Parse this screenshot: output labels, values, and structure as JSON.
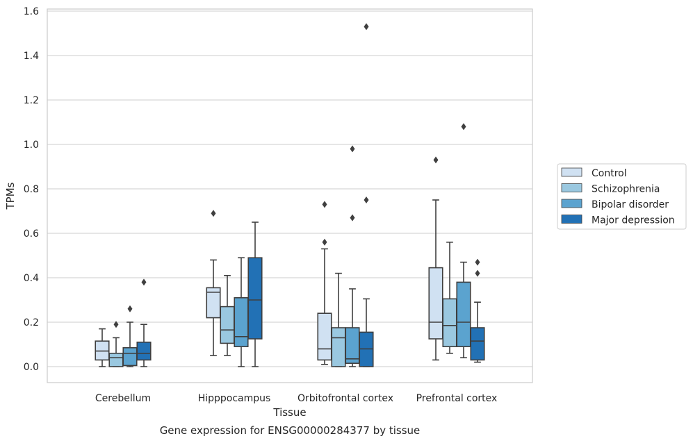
{
  "chart_data": {
    "type": "box",
    "xlabel": "Tissue",
    "ylabel": "TPMs",
    "caption": "Gene expression for ENSG00000284377 by tissue",
    "ylim": [
      -0.07,
      1.61
    ],
    "yticks": [
      "0.0",
      "0.2",
      "0.4",
      "0.6",
      "0.8",
      "1.0",
      "1.2",
      "1.4",
      "1.6"
    ],
    "grid": true,
    "legend_position": "right",
    "categories": [
      "Cerebellum",
      "Hipppocampus",
      "Orbitofrontal cortex",
      "Prefrontal cortex"
    ],
    "series": [
      {
        "name": "Control",
        "color": "#d0e1f2",
        "boxes": [
          {
            "whislo": 0.0,
            "q1": 0.03,
            "med": 0.07,
            "q3": 0.115,
            "whishi": 0.17,
            "fliers": []
          },
          {
            "whislo": 0.05,
            "q1": 0.22,
            "med": 0.335,
            "q3": 0.355,
            "whishi": 0.48,
            "fliers": [
              0.69
            ]
          },
          {
            "whislo": 0.01,
            "q1": 0.03,
            "med": 0.08,
            "q3": 0.24,
            "whishi": 0.53,
            "fliers": [
              0.56,
              0.73
            ]
          },
          {
            "whislo": 0.03,
            "q1": 0.125,
            "med": 0.2,
            "q3": 0.445,
            "whishi": 0.75,
            "fliers": [
              0.93
            ]
          }
        ]
      },
      {
        "name": "Schizophrenia",
        "color": "#9ac8e0",
        "boxes": [
          {
            "whislo": 0.0,
            "q1": 0.0,
            "med": 0.04,
            "q3": 0.06,
            "whishi": 0.13,
            "fliers": [
              0.19
            ]
          },
          {
            "whislo": 0.05,
            "q1": 0.105,
            "med": 0.165,
            "q3": 0.27,
            "whishi": 0.41,
            "fliers": []
          },
          {
            "whislo": 0.0,
            "q1": 0.0,
            "med": 0.13,
            "q3": 0.175,
            "whishi": 0.42,
            "fliers": []
          },
          {
            "whislo": 0.06,
            "q1": 0.09,
            "med": 0.185,
            "q3": 0.305,
            "whishi": 0.56,
            "fliers": []
          }
        ]
      },
      {
        "name": "Bipolar disorder",
        "color": "#5ba3cf",
        "boxes": [
          {
            "whislo": 0.0,
            "q1": 0.005,
            "med": 0.06,
            "q3": 0.085,
            "whishi": 0.2,
            "fliers": [
              0.26
            ]
          },
          {
            "whislo": 0.0,
            "q1": 0.09,
            "med": 0.135,
            "q3": 0.31,
            "whishi": 0.49,
            "fliers": []
          },
          {
            "whislo": 0.0,
            "q1": 0.015,
            "med": 0.035,
            "q3": 0.175,
            "whishi": 0.35,
            "fliers": [
              0.67,
              0.98
            ]
          },
          {
            "whislo": 0.04,
            "q1": 0.09,
            "med": 0.2,
            "q3": 0.38,
            "whishi": 0.47,
            "fliers": [
              1.08
            ]
          }
        ]
      },
      {
        "name": "Major depression",
        "color": "#2271b5",
        "boxes": [
          {
            "whislo": 0.0,
            "q1": 0.03,
            "med": 0.06,
            "q3": 0.11,
            "whishi": 0.19,
            "fliers": [
              0.38
            ]
          },
          {
            "whislo": 0.0,
            "q1": 0.125,
            "med": 0.3,
            "q3": 0.49,
            "whishi": 0.65,
            "fliers": []
          },
          {
            "whislo": 0.0,
            "q1": 0.0,
            "med": 0.08,
            "q3": 0.155,
            "whishi": 0.305,
            "fliers": [
              0.75,
              1.53
            ]
          },
          {
            "whislo": 0.02,
            "q1": 0.03,
            "med": 0.115,
            "q3": 0.175,
            "whishi": 0.29,
            "fliers": [
              0.42,
              0.47
            ]
          }
        ]
      }
    ]
  }
}
